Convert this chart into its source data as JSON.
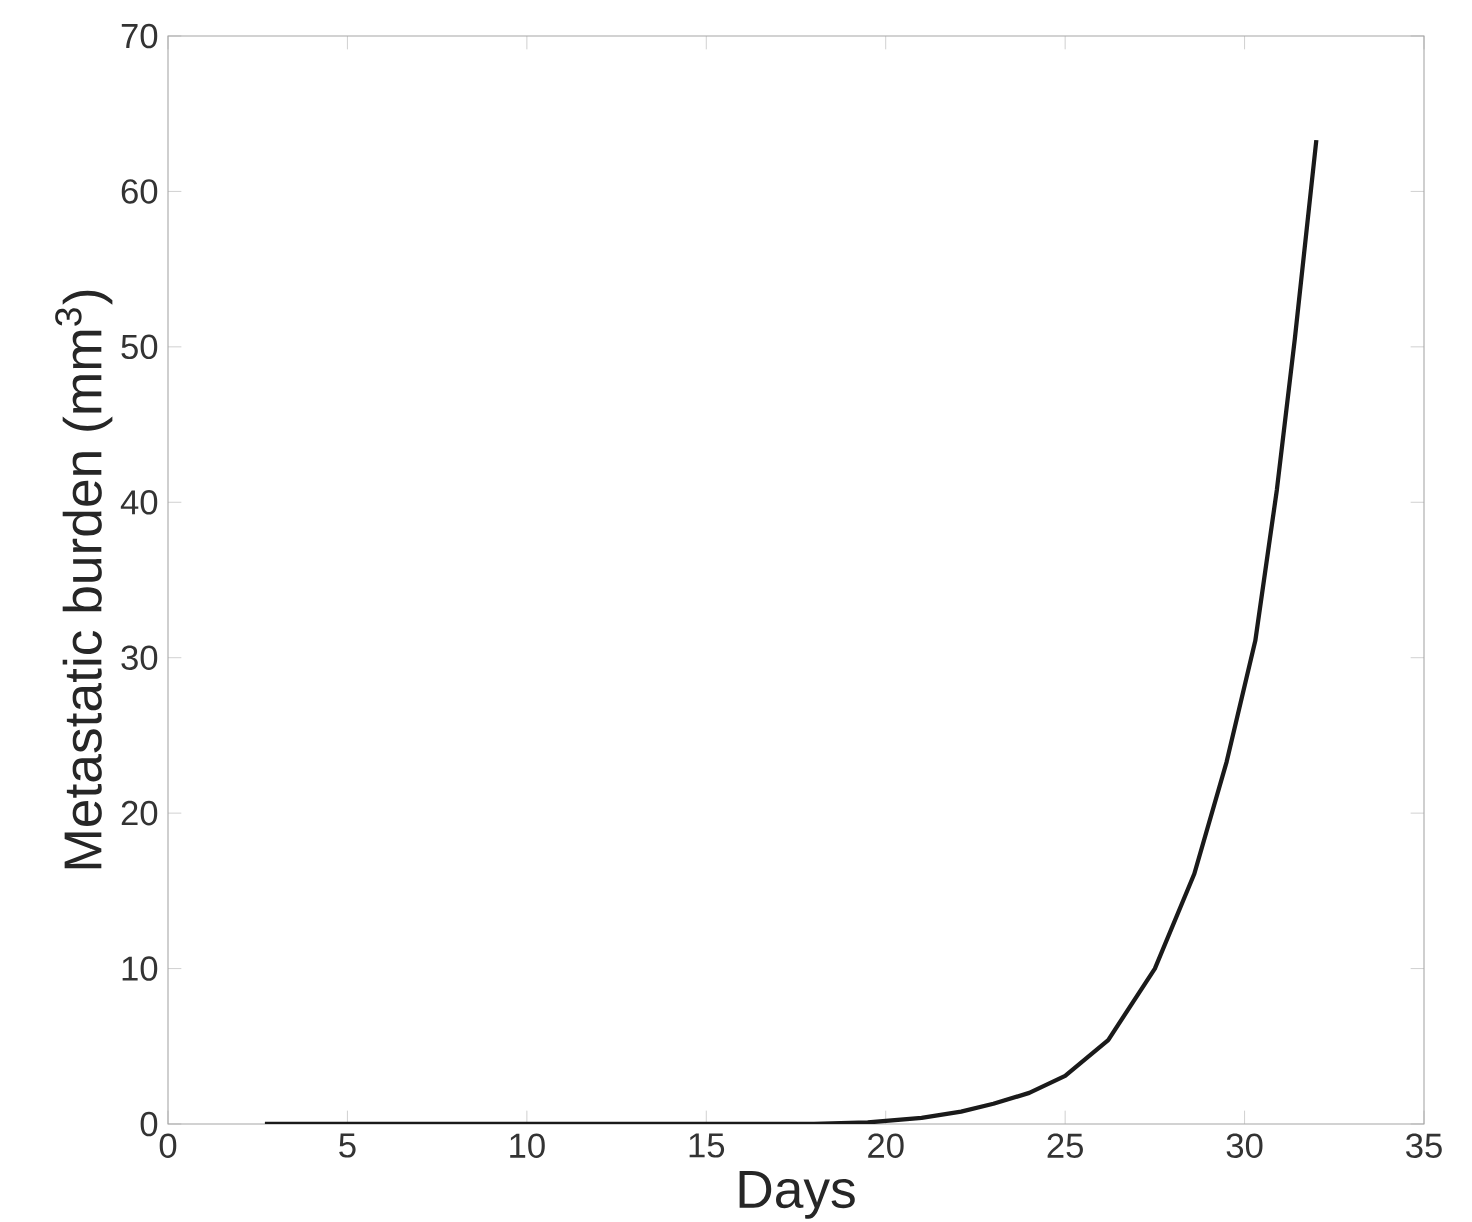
{
  "chart_data": {
    "type": "line",
    "xlabel": "Days",
    "ylabel": "Metastatic burden (mm$^{3}$)",
    "series": [
      {
        "color": "#1a1a1a",
        "x": [
          2.7,
          6,
          10,
          14,
          18,
          19.5,
          21,
          22.1,
          23,
          24,
          25,
          26.2,
          27.5,
          28.6,
          29.5,
          30.3,
          30.9,
          31.4,
          32
        ],
        "values": [
          0,
          0,
          0,
          0,
          0,
          0.1,
          0.4,
          0.8,
          1.3,
          2,
          3.1,
          5.4,
          10,
          16.1,
          23.3,
          31.1,
          40.8,
          50.5,
          63.3
        ]
      }
    ],
    "xlim": [
      0,
      35
    ],
    "ylim": [
      0,
      70
    ],
    "xticks": [
      0,
      5,
      10,
      15,
      20,
      25,
      30,
      35
    ],
    "yticks": [
      0,
      10,
      20,
      30,
      40,
      50,
      60,
      70
    ],
    "marker": "none",
    "line_style": "solid"
  }
}
